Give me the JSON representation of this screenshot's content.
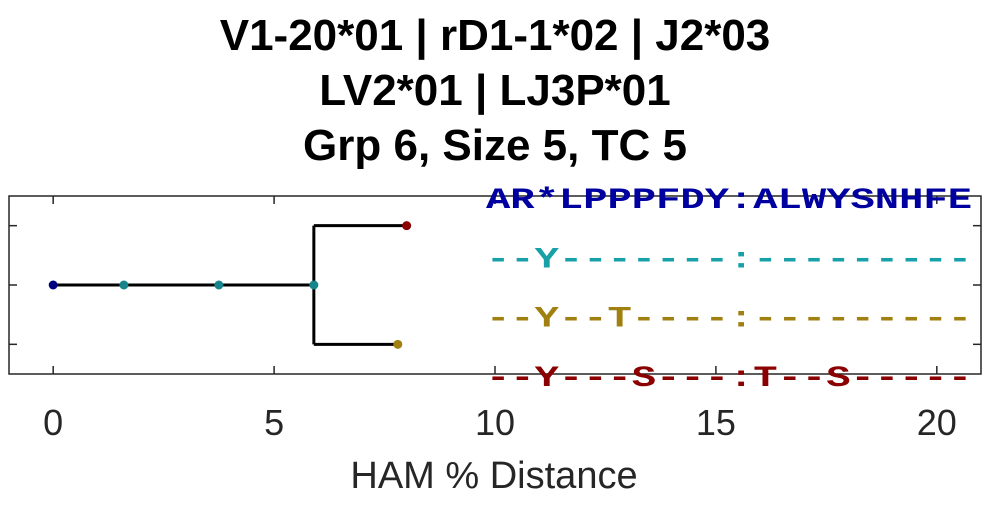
{
  "title_lines": [
    "V1-20*01 | rD1-1*02 | J2*03",
    "LV2*01 | LJ3P*01",
    "Grp 6, Size 5, TC 5"
  ],
  "chart_data": {
    "type": "dendrogram",
    "xlabel": "HAM % Distance",
    "xlim": [
      -1,
      21
    ],
    "xticks": [
      0,
      5,
      10,
      15,
      20
    ],
    "ylim": [
      0.5,
      3.5
    ],
    "grid": false,
    "tree": {
      "nodes": [
        {
          "x": 0.0,
          "y": 2.0,
          "color": "#000080"
        },
        {
          "x": 1.6,
          "y": 2.0,
          "color": "#17868c"
        },
        {
          "x": 3.75,
          "y": 2.0,
          "color": "#17868c"
        },
        {
          "x": 5.9,
          "y": 2.0,
          "color": "#17868c"
        },
        {
          "x": 8.0,
          "y": 1.0,
          "color": "#8b0000"
        },
        {
          "x": 7.8,
          "y": 3.0,
          "color": "#a08010"
        }
      ],
      "branches": [
        {
          "from": [
            0.0,
            2.0
          ],
          "to": [
            5.9,
            2.0
          ]
        },
        {
          "from": [
            5.9,
            1.0
          ],
          "to": [
            5.9,
            3.0
          ]
        },
        {
          "from": [
            5.9,
            1.0
          ],
          "to": [
            8.0,
            1.0
          ]
        },
        {
          "from": [
            5.9,
            3.0
          ],
          "to": [
            7.8,
            3.0
          ]
        }
      ]
    },
    "sequences": [
      {
        "text": "AR*LPPPFDY:ALWYSNHFE",
        "color": "#0000a0",
        "y": 0.5
      },
      {
        "text": "--Y-------:---------",
        "color": "#17a0a8",
        "y": 1.5
      },
      {
        "text": "--Y--T----:---------",
        "color": "#a08010",
        "y": 2.5
      },
      {
        "text": "--Y---S---:T--S-----",
        "color": "#8b0000",
        "y": 3.5
      }
    ]
  }
}
